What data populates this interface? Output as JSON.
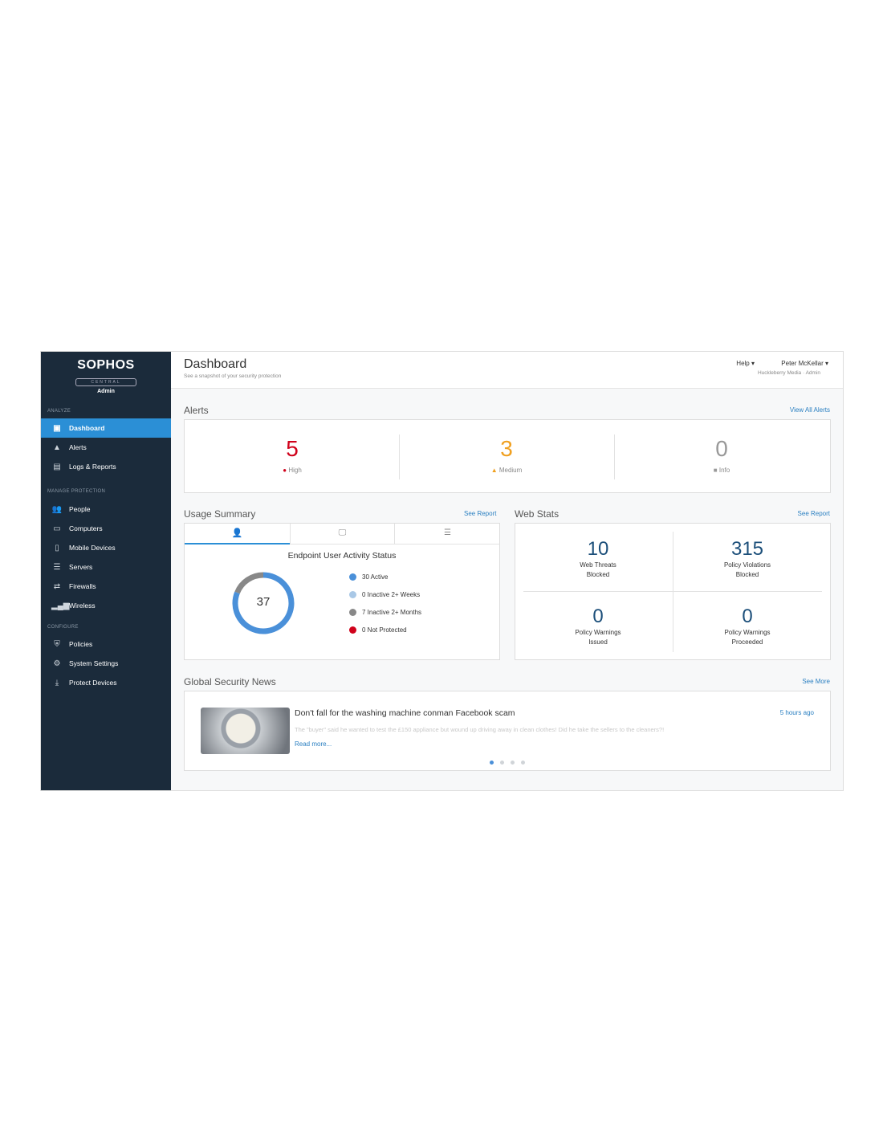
{
  "sidebar": {
    "brand": "SOPHOS",
    "product": "CENTRAL",
    "role": "Admin",
    "sections": [
      "ANALYZE",
      "MANAGE PROTECTION",
      "CONFIGURE"
    ],
    "items": [
      {
        "label": "Dashboard",
        "icon": "dashboard-icon"
      },
      {
        "label": "Alerts",
        "icon": "warning-icon"
      },
      {
        "label": "Logs & Reports",
        "icon": "report-icon"
      },
      {
        "label": "People",
        "icon": "people-icon"
      },
      {
        "label": "Computers",
        "icon": "computer-icon"
      },
      {
        "label": "Mobile Devices",
        "icon": "mobile-icon"
      },
      {
        "label": "Servers",
        "icon": "server-icon"
      },
      {
        "label": "Firewalls",
        "icon": "firewall-icon"
      },
      {
        "label": "Wireless",
        "icon": "wireless-icon"
      },
      {
        "label": "Policies",
        "icon": "shield-icon"
      },
      {
        "label": "System Settings",
        "icon": "gear-icon"
      },
      {
        "label": "Protect Devices",
        "icon": "download-icon"
      }
    ]
  },
  "header": {
    "title": "Dashboard",
    "subtitle": "See a snapshot of your security protection",
    "help": "Help",
    "user": "Peter McKellar",
    "org": "Huckleberry Media · Admin"
  },
  "alerts": {
    "title": "Alerts",
    "link": "View All Alerts",
    "items": [
      {
        "count": "5",
        "label": "High",
        "color": "#d0021b"
      },
      {
        "count": "3",
        "label": "Medium",
        "color": "#f0a020"
      },
      {
        "count": "0",
        "label": "Info",
        "color": "#999999"
      }
    ]
  },
  "usage": {
    "title": "Usage Summary",
    "link": "See Report",
    "chart_title": "Endpoint User Activity Status",
    "total": "37",
    "legend": [
      {
        "label": "30 Active",
        "value": 30,
        "color": "#4a90d9"
      },
      {
        "label": "0 Inactive 2+ Weeks",
        "value": 0,
        "color": "#a9c8e6"
      },
      {
        "label": "7 Inactive 2+ Months",
        "value": 7,
        "color": "#888888"
      },
      {
        "label": "0 Not Protected",
        "value": 0,
        "color": "#d0021b"
      }
    ]
  },
  "webstats": {
    "title": "Web Stats",
    "link": "See Report",
    "items": [
      {
        "value": "10",
        "label1": "Web Threats",
        "label2": "Blocked"
      },
      {
        "value": "315",
        "label1": "Policy Violations",
        "label2": "Blocked"
      },
      {
        "value": "0",
        "label1": "Policy Warnings",
        "label2": "Issued"
      },
      {
        "value": "0",
        "label1": "Policy Warnings",
        "label2": "Proceeded"
      }
    ]
  },
  "news": {
    "title": "Global Security News",
    "link": "See More",
    "headline": "Don't fall for the washing machine conman Facebook scam",
    "time": "5 hours ago",
    "summary": "The \"buyer\" said he wanted to test the £150 appliance but wound up driving away in clean clothes! Did he take the sellers to the cleaners?!",
    "read_more": "Read more...",
    "pages": 4,
    "current_page": 1
  }
}
